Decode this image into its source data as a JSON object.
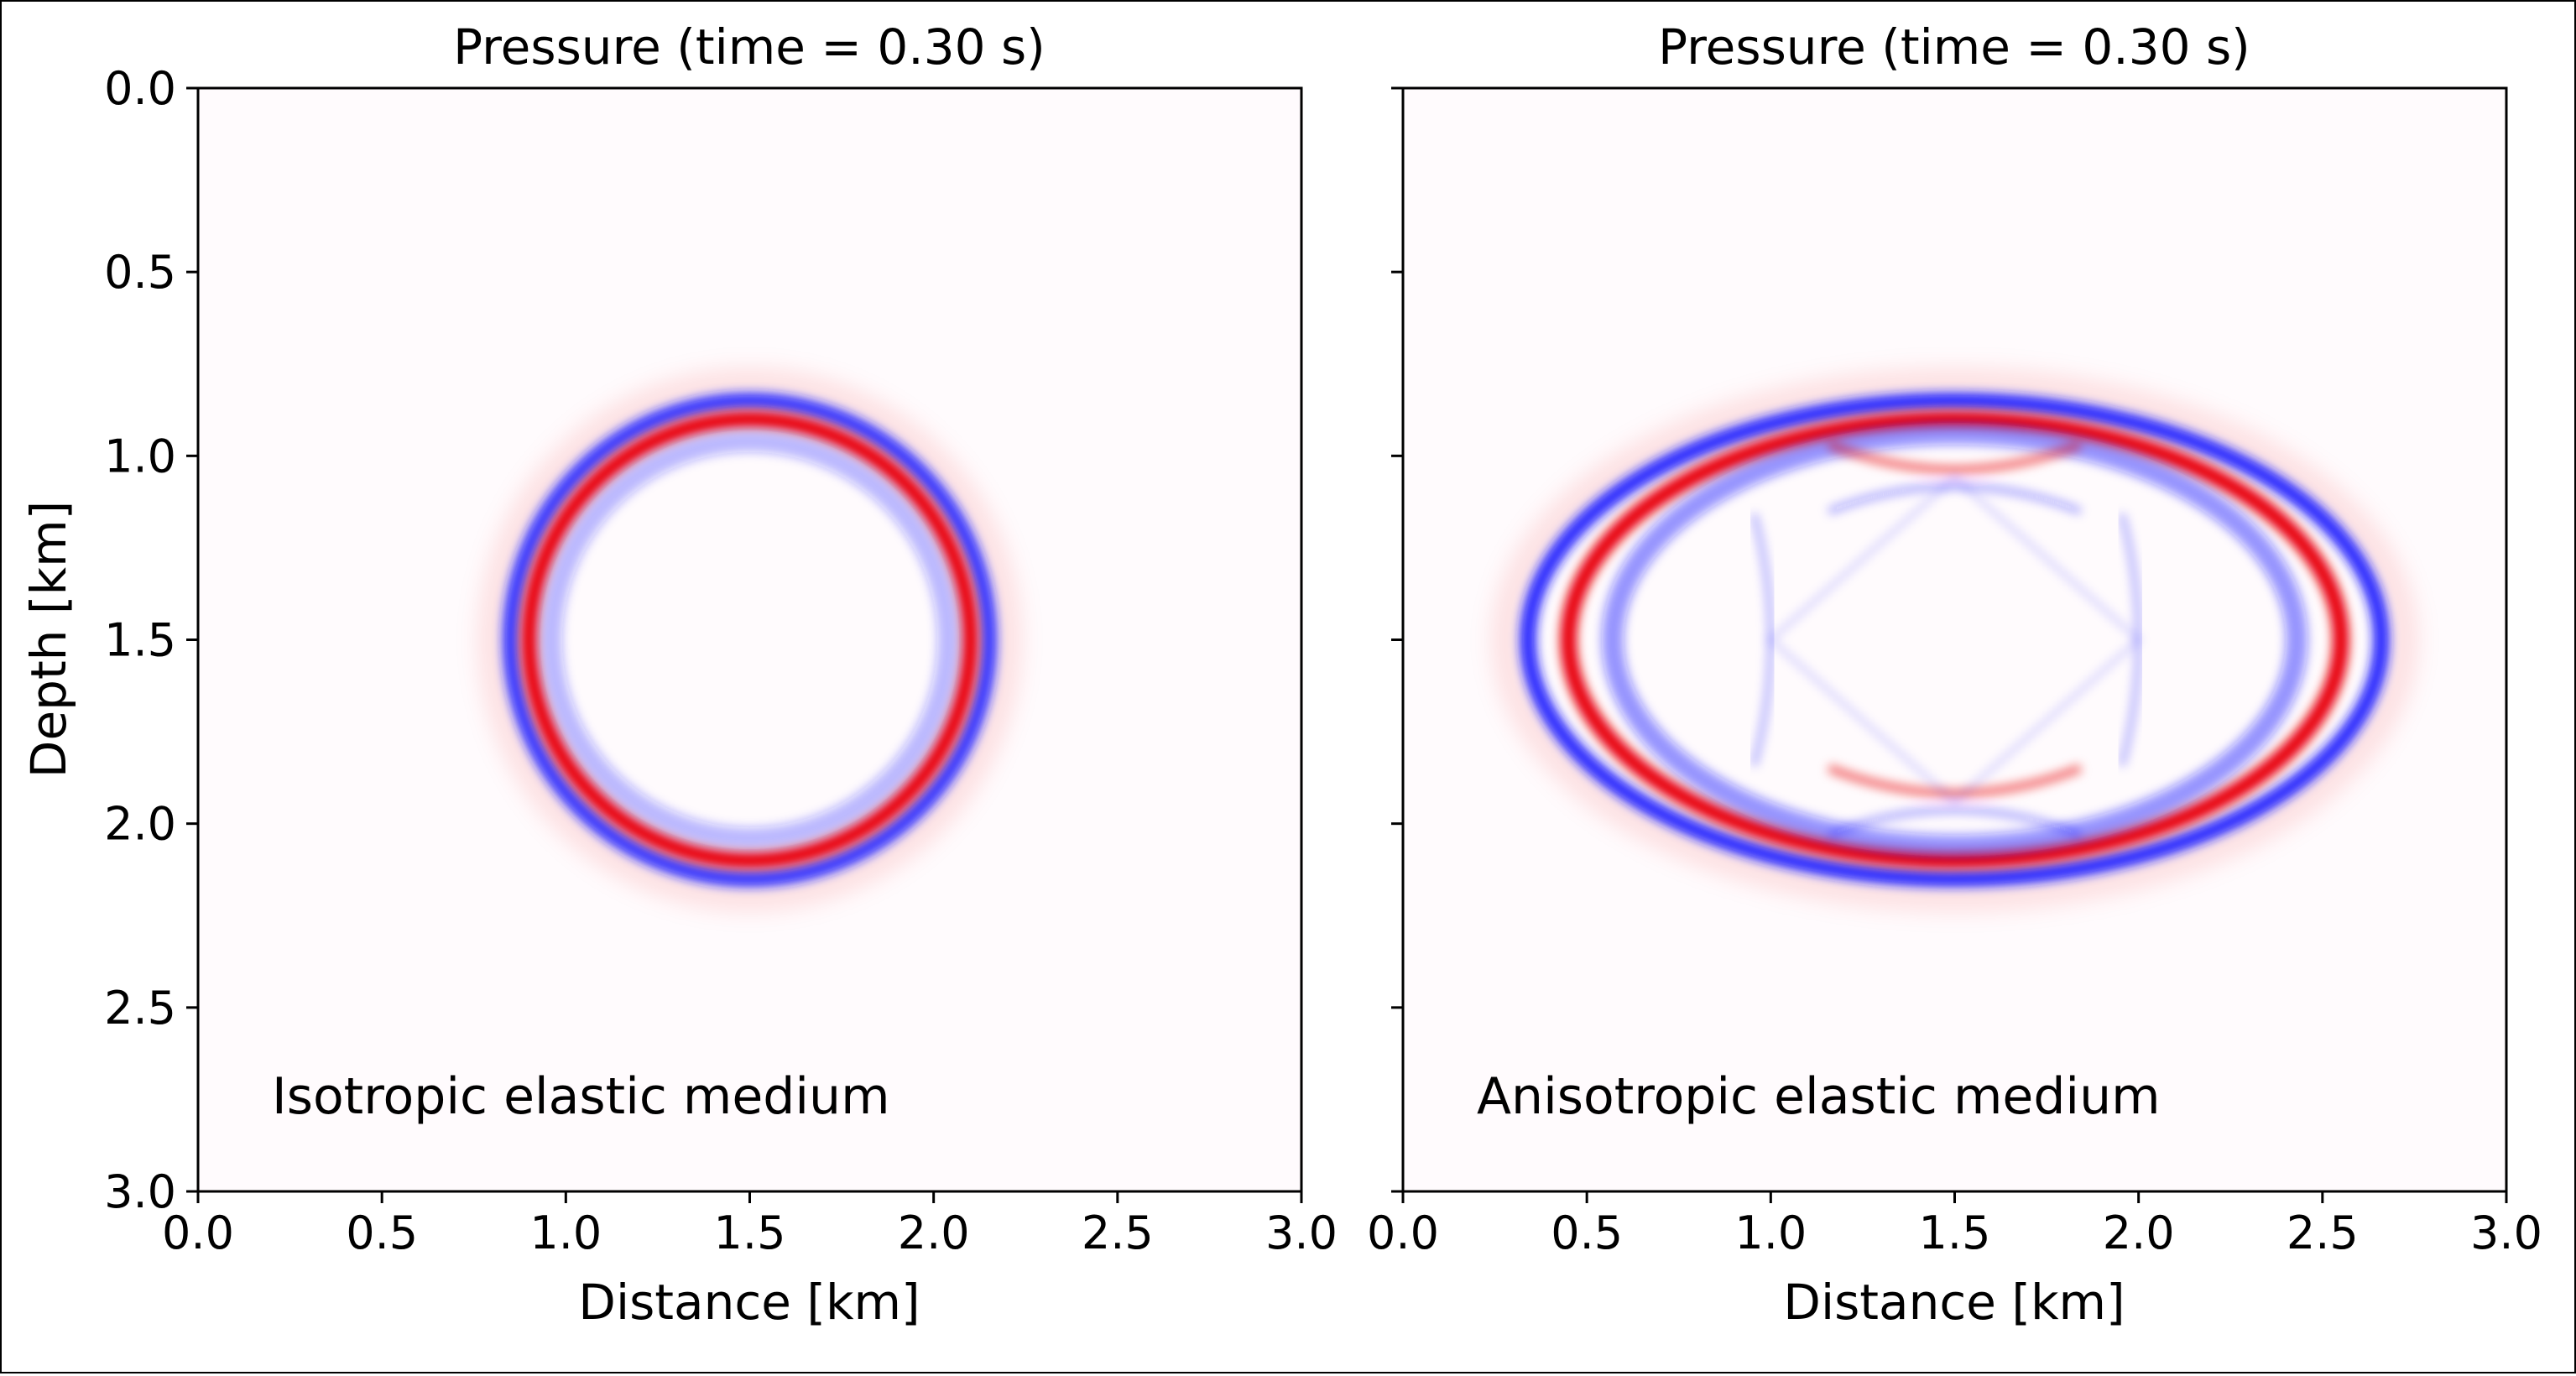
{
  "colors": {
    "positive": "#e8000b",
    "negative": "#1a1aff",
    "background": "#fffbfd",
    "axis": "#000000"
  },
  "chart_data": [
    {
      "type": "heatmap",
      "title": "Pressure (time = 0.30 s)",
      "xlabel": "Distance [km]",
      "ylabel": "Depth [km]",
      "xlim": [
        0.0,
        3.0
      ],
      "ylim": [
        3.0,
        0.0
      ],
      "xticks": [
        "0.0",
        "0.5",
        "1.0",
        "1.5",
        "2.0",
        "2.5",
        "3.0"
      ],
      "yticks": [
        "0.0",
        "0.5",
        "1.0",
        "1.5",
        "2.0",
        "2.5",
        "3.0"
      ],
      "annotation": "Isotropic elastic medium",
      "source": {
        "x": 1.5,
        "z": 1.5
      },
      "wavefronts": [
        {
          "name": "outer-halo",
          "sign": "positive",
          "rx": 0.7,
          "rz": 0.7,
          "strength": 0.12
        },
        {
          "name": "outer-trough",
          "sign": "negative",
          "rx": 0.65,
          "rz": 0.65,
          "strength": 0.85
        },
        {
          "name": "main-peak",
          "sign": "positive",
          "rx": 0.6,
          "rz": 0.6,
          "strength": 1.0
        },
        {
          "name": "inner-trough",
          "sign": "negative",
          "rx": 0.54,
          "rz": 0.54,
          "strength": 0.3
        }
      ]
    },
    {
      "type": "heatmap",
      "title": "Pressure (time = 0.30 s)",
      "xlabel": "Distance [km]",
      "ylabel": "",
      "xlim": [
        0.0,
        3.0
      ],
      "ylim": [
        3.0,
        0.0
      ],
      "xticks": [
        "0.0",
        "0.5",
        "1.0",
        "1.5",
        "2.0",
        "2.5",
        "3.0"
      ],
      "yticks": [],
      "annotation": "Anisotropic elastic medium",
      "source": {
        "x": 1.5,
        "z": 1.5
      },
      "wavefronts": [
        {
          "name": "outer-halo",
          "sign": "positive",
          "rx": 1.22,
          "rz": 0.7,
          "strength": 0.12
        },
        {
          "name": "outer-trough",
          "sign": "negative",
          "rx": 1.16,
          "rz": 0.65,
          "strength": 0.9
        },
        {
          "name": "main-peak",
          "sign": "positive",
          "rx": 1.05,
          "rz": 0.6,
          "strength": 1.0
        },
        {
          "name": "inner-trough",
          "sign": "negative",
          "rx": 0.93,
          "rz": 0.56,
          "strength": 0.45
        }
      ],
      "shear_features": [
        {
          "name": "cusp-top",
          "x": 1.5,
          "z": 1.06,
          "sign": "positive"
        },
        {
          "name": "cusp-bottom",
          "x": 1.5,
          "z": 1.94,
          "sign": "positive"
        },
        {
          "name": "cusp-left",
          "x": 1.0,
          "z": 1.5,
          "sign": "negative"
        },
        {
          "name": "cusp-right",
          "x": 2.0,
          "z": 1.5,
          "sign": "negative"
        }
      ]
    }
  ]
}
